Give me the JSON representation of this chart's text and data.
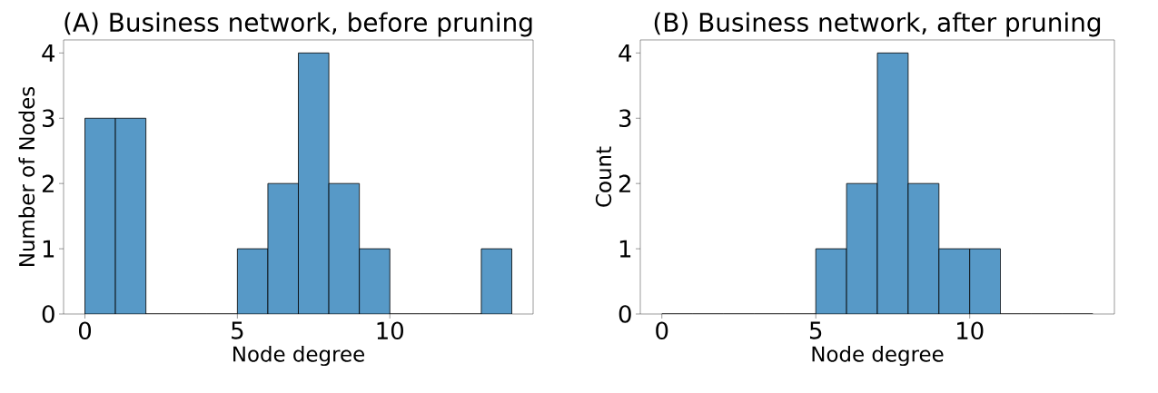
{
  "chart_data": [
    {
      "type": "histogram",
      "title": "(A) Business network, before pruning",
      "xlabel": "Node degree",
      "ylabel": "Number of Nodes",
      "color": "#5799c7",
      "bins": [
        0,
        1,
        2,
        3,
        4,
        5,
        6,
        7,
        8,
        9,
        10,
        11,
        12,
        13,
        14
      ],
      "values": [
        3,
        3,
        0,
        0,
        0,
        1,
        2,
        4,
        2,
        1,
        0,
        0,
        0,
        1
      ],
      "xlim": [
        -0.7,
        14.7
      ],
      "ylim": [
        0,
        4.2
      ],
      "xticks": [
        0,
        5,
        10
      ],
      "yticks": [
        0,
        1,
        2,
        3,
        4
      ],
      "grid": false
    },
    {
      "type": "histogram",
      "title": "(B) Business network, after pruning",
      "xlabel": "Node degree",
      "ylabel": "Count",
      "color": "#5799c7",
      "bins": [
        0,
        1,
        2,
        3,
        4,
        5,
        6,
        7,
        8,
        9,
        10,
        11,
        12,
        13,
        14
      ],
      "values": [
        0,
        0,
        0,
        0,
        0,
        1,
        2,
        4,
        2,
        1,
        1,
        0,
        0,
        0
      ],
      "xlim": [
        -0.7,
        14.7
      ],
      "ylim": [
        0,
        4.2
      ],
      "xticks": [
        0,
        5,
        10
      ],
      "yticks": [
        0,
        1,
        2,
        3,
        4
      ],
      "grid": false
    }
  ]
}
